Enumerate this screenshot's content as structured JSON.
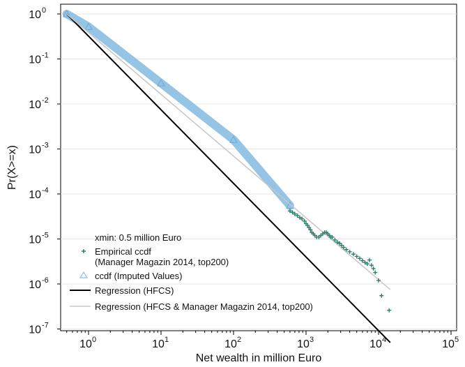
{
  "chart_data": {
    "type": "scatter",
    "title": "",
    "xlabel": "Net wealth in million Euro",
    "ylabel": "Pr(X>=x)",
    "x_scale": "log",
    "y_scale": "log",
    "xlim": [
      0.5,
      100000
    ],
    "ylim": [
      1e-07,
      1
    ],
    "grid": "horizontal",
    "x_ticks": [
      {
        "base": "10",
        "exp": "0",
        "value": 1
      },
      {
        "base": "10",
        "exp": "1",
        "value": 10
      },
      {
        "base": "10",
        "exp": "2",
        "value": 100
      },
      {
        "base": "10",
        "exp": "3",
        "value": 1000
      },
      {
        "base": "10",
        "exp": "4",
        "value": 10000
      },
      {
        "base": "10",
        "exp": "5",
        "value": 100000
      }
    ],
    "y_ticks": [
      {
        "base": "10",
        "exp": "0",
        "value": 1
      },
      {
        "base": "10",
        "exp": "-1",
        "value": 0.1
      },
      {
        "base": "10",
        "exp": "-2",
        "value": 0.01
      },
      {
        "base": "10",
        "exp": "-3",
        "value": 0.001
      },
      {
        "base": "10",
        "exp": "-4",
        "value": 0.0001
      },
      {
        "base": "10",
        "exp": "-5",
        "value": 1e-05
      },
      {
        "base": "10",
        "exp": "-6",
        "value": 1e-06
      },
      {
        "base": "10",
        "exp": "-7",
        "value": 1e-07
      }
    ],
    "legend": {
      "placement": "bottom-left",
      "note": "xmin: 0.5 million Euro",
      "entries": [
        {
          "label_lines": [
            "Empirical ccdf",
            "(Manager Magazin 2014, top200)"
          ],
          "marker": "plus",
          "color": "#2e7d6b"
        },
        {
          "label_lines": [
            "ccdf (Imputed Values)"
          ],
          "marker": "triangle",
          "color": "#8fc1e3"
        },
        {
          "label_lines": [
            "Regression (HFCS)"
          ],
          "marker": "line",
          "color": "#000000"
        },
        {
          "label_lines": [
            "Regression (HFCS & Manager Magazin 2014, top200)"
          ],
          "marker": "line",
          "color": "#c8c8c8"
        }
      ]
    },
    "series": [
      {
        "name": "ccdf (Imputed Values)",
        "kind": "band",
        "color": "#8fc1e3",
        "x": [
          0.5,
          1,
          10,
          100,
          600
        ],
        "y": [
          1,
          0.52,
          0.029,
          0.0016,
          5.5e-05
        ]
      },
      {
        "name": "Regression (HFCS)",
        "kind": "line",
        "color": "#000000",
        "x": [
          0.5,
          14500
        ],
        "y": [
          1,
          5e-08
        ]
      },
      {
        "name": "Regression (HFCS & Manager Magazin 2014, top200)",
        "kind": "line",
        "color": "#c8c8c8",
        "x": [
          0.5,
          14500
        ],
        "y": [
          1,
          7.5e-07
        ]
      },
      {
        "name": "Empirical ccdf (Manager Magazin 2014, top200)",
        "kind": "points",
        "marker": "plus",
        "color": "#2e7d6b",
        "x": [
          600,
          650,
          700,
          760,
          820,
          880,
          950,
          1000,
          1050,
          1100,
          1150,
          1200,
          1260,
          1320,
          1400,
          1500,
          1600,
          1700,
          1800,
          1900,
          2000,
          2100,
          2200,
          2300,
          2500,
          2700,
          2900,
          3100,
          3300,
          3600,
          4000,
          4500,
          5000,
          5500,
          6000,
          6500,
          7000,
          7500,
          8000,
          8500,
          9000,
          10000,
          11000,
          14000
        ],
        "y": [
          4.2e-05,
          3.9e-05,
          3.6e-05,
          3.3e-05,
          3e-05,
          2.8e-05,
          2.5e-05,
          2.2e-05,
          2e-05,
          1.8e-05,
          1.6e-05,
          1.4e-05,
          1.3e-05,
          1.2e-05,
          1.1e-05,
          1.1e-05,
          1.2e-05,
          1.3e-05,
          1.4e-05,
          1.4e-05,
          1.3e-05,
          1.2e-05,
          1.1e-05,
          1.1e-05,
          9.5e-06,
          8.5e-06,
          8e-06,
          7.2e-06,
          6.5e-06,
          5.8e-06,
          5.2e-06,
          4.6e-06,
          4.1e-06,
          3.7e-06,
          3.3e-06,
          3e-06,
          2.8e-06,
          3.4e-06,
          2.6e-06,
          2.2e-06,
          1.8e-06,
          1.2e-06,
          5.5e-07,
          2.6e-07
        ]
      }
    ]
  }
}
